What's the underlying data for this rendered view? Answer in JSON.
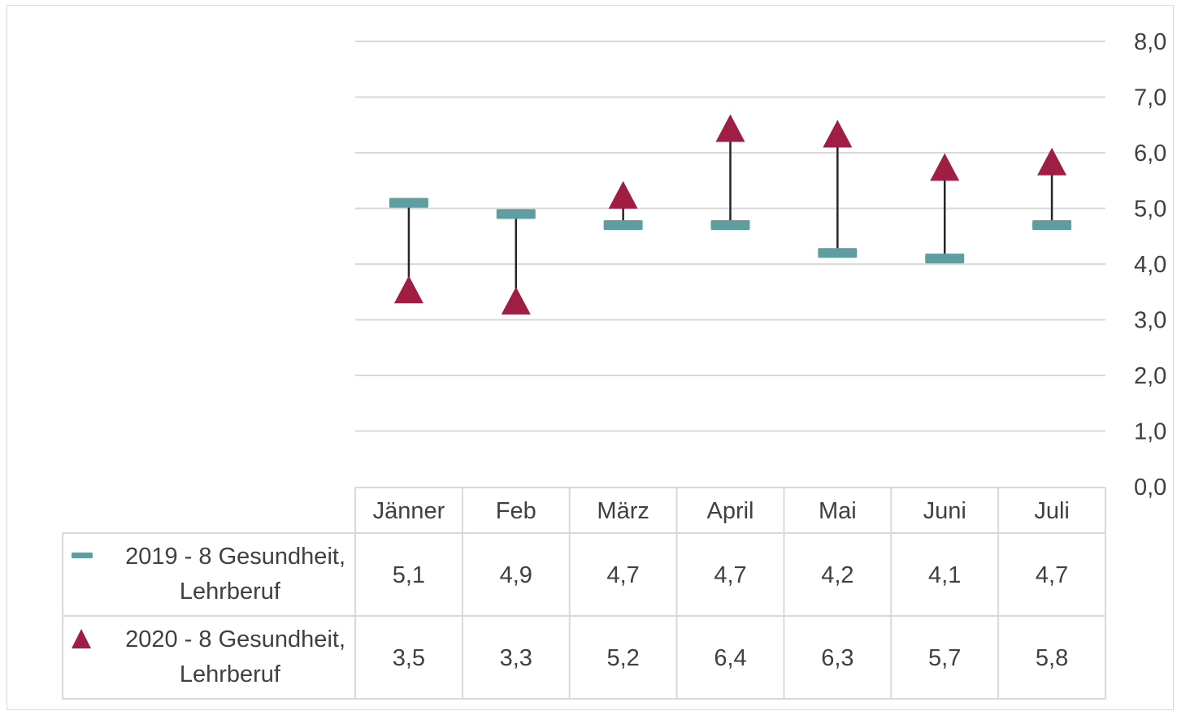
{
  "chart_data": {
    "type": "line",
    "categories": [
      "Jänner",
      "Feb",
      "März",
      "April",
      "Mai",
      "Juni",
      "Juli"
    ],
    "series": [
      {
        "name": "2019 - 8 Gesundheit, Lehrberuf",
        "marker": "dash",
        "color": "#5f9ea0",
        "values": [
          5.1,
          4.9,
          4.7,
          4.7,
          4.2,
          4.1,
          4.7
        ],
        "labels": [
          "5,1",
          "4,9",
          "4,7",
          "4,7",
          "4,2",
          "4,1",
          "4,7"
        ]
      },
      {
        "name": "2020 - 8 Gesundheit, Lehrberuf",
        "marker": "triangle",
        "color": "#a01e44",
        "values": [
          3.5,
          3.3,
          5.2,
          6.4,
          6.3,
          5.7,
          5.8
        ],
        "labels": [
          "3,5",
          "3,3",
          "5,2",
          "6,4",
          "6,3",
          "5,7",
          "5,8"
        ]
      }
    ],
    "ylim": [
      0,
      8
    ],
    "yticks": [
      "0,0",
      "1,0",
      "2,0",
      "3,0",
      "4,0",
      "5,0",
      "6,0",
      "7,0",
      "8,0"
    ],
    "y_axis_side": "right",
    "gridlines": true,
    "high_low_lines": true,
    "legend": "data-table",
    "title": "",
    "xlabel": "",
    "ylabel": ""
  }
}
